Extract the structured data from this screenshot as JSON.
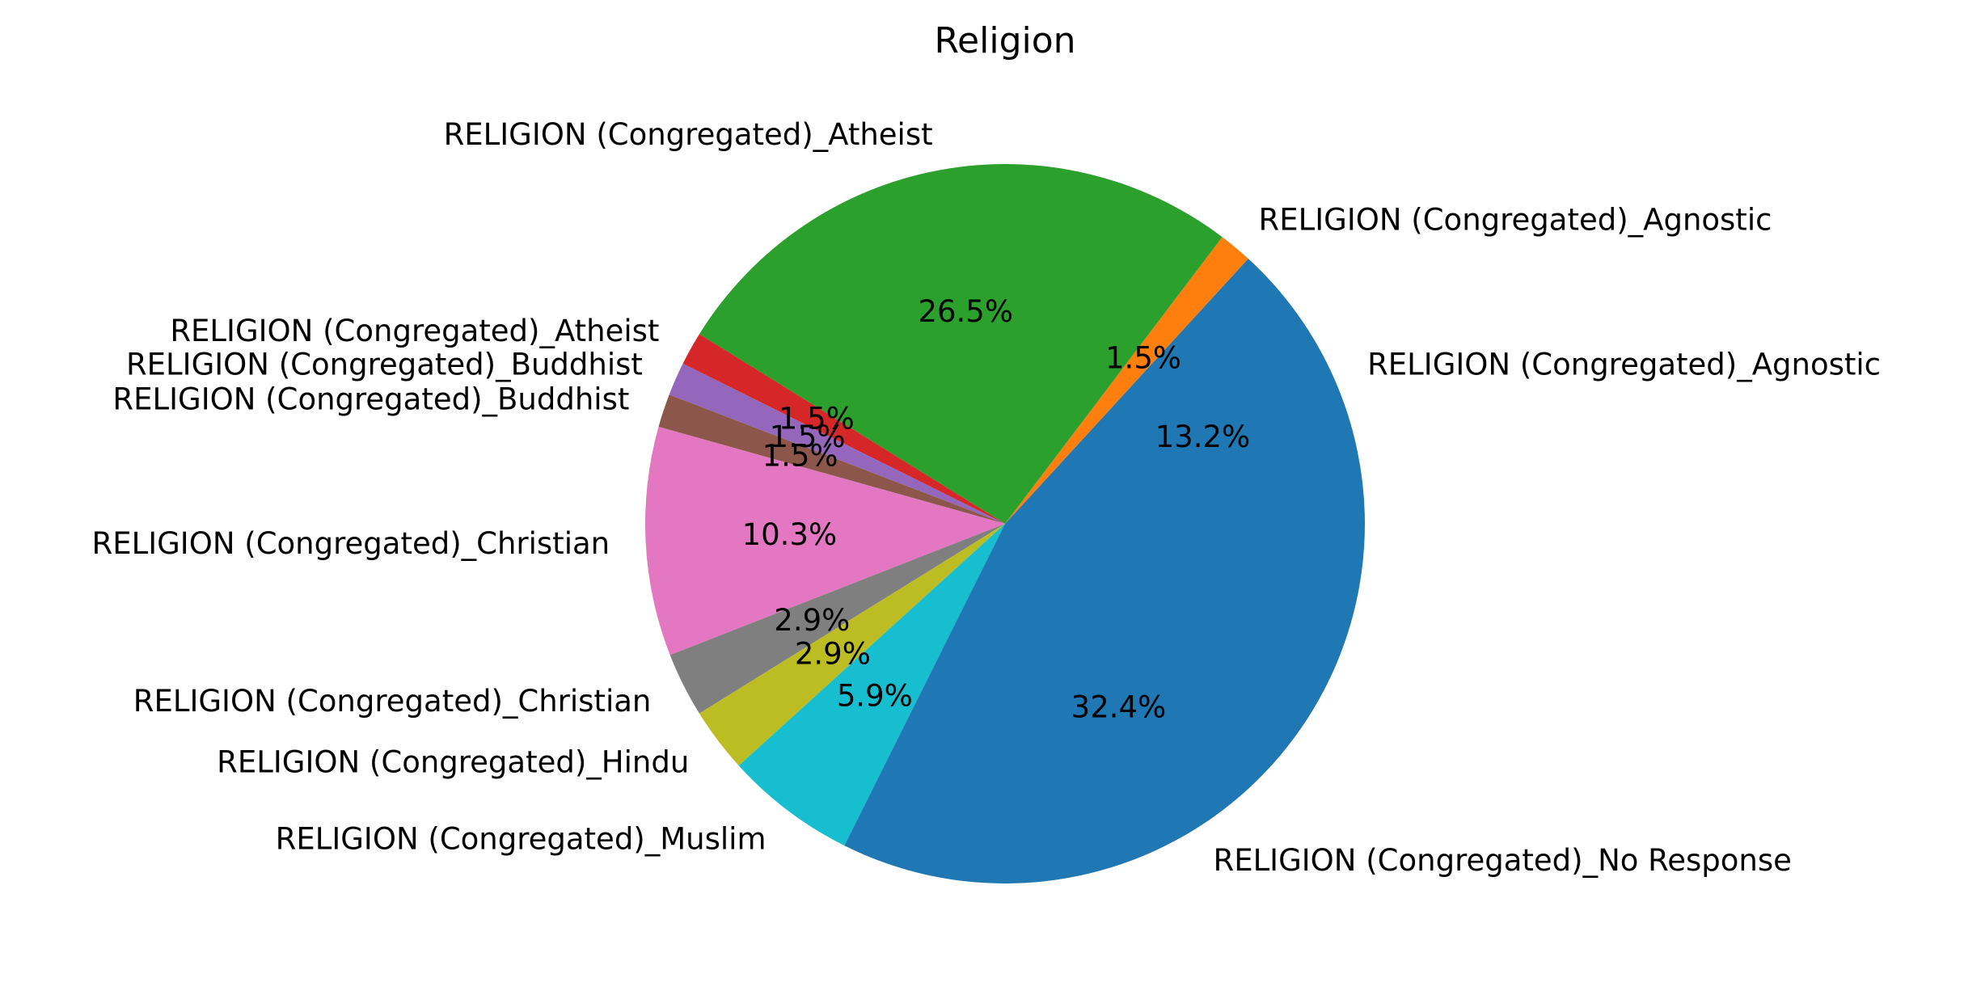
{
  "chart_data": {
    "type": "pie",
    "title": "Religion",
    "start_angle_deg": 0,
    "direction": "counterclockwise",
    "slices": [
      {
        "label": "RELIGION (Congregated)_Agnostic",
        "value": 13.2,
        "pct_label": "13.2%",
        "color": "#1f77b4"
      },
      {
        "label": "RELIGION (Congregated)_Agnostic",
        "value": 1.5,
        "pct_label": "1.5%",
        "color": "#ff7f0e"
      },
      {
        "label": "RELIGION (Congregated)_Atheist",
        "value": 26.5,
        "pct_label": "26.5%",
        "color": "#2ca02c"
      },
      {
        "label": "RELIGION (Congregated)_Atheist",
        "value": 1.5,
        "pct_label": "1.5%",
        "color": "#d62728"
      },
      {
        "label": "RELIGION (Congregated)_Buddhist",
        "value": 1.5,
        "pct_label": "1.5%",
        "color": "#9467bd"
      },
      {
        "label": "RELIGION (Congregated)_Buddhist",
        "value": 1.5,
        "pct_label": "1.5%",
        "color": "#8c564b"
      },
      {
        "label": "RELIGION (Congregated)_Christian",
        "value": 10.3,
        "pct_label": "10.3%",
        "color": "#e377c2"
      },
      {
        "label": "RELIGION (Congregated)_Christian",
        "value": 2.9,
        "pct_label": "2.9%",
        "color": "#7f7f7f"
      },
      {
        "label": "RELIGION (Congregated)_Hindu",
        "value": 2.9,
        "pct_label": "2.9%",
        "color": "#bcbd22"
      },
      {
        "label": "RELIGION (Congregated)_Muslim",
        "value": 5.9,
        "pct_label": "5.9%",
        "color": "#17becf"
      },
      {
        "label": "RELIGION (Congregated)_No Response",
        "value": 32.4,
        "pct_label": "32.4%",
        "color": "#1f77b4"
      }
    ]
  }
}
